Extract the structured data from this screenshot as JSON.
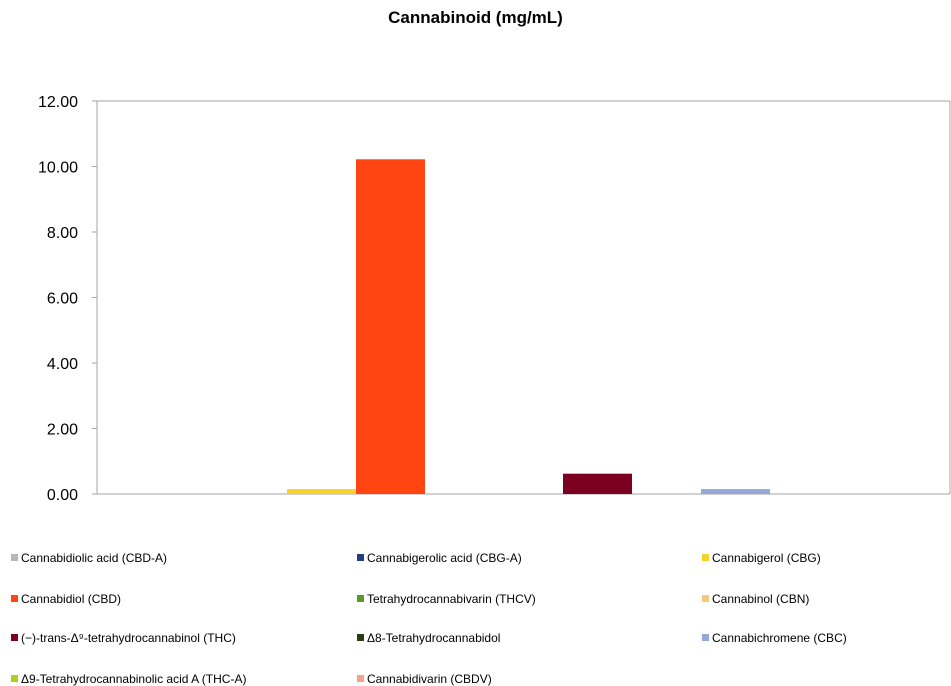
{
  "chart_data": {
    "type": "bar",
    "title": "Cannabinoid (mg/mL)",
    "xlabel": "",
    "ylabel": "",
    "ylim": [
      0,
      12
    ],
    "y_ticks": [
      "0.00",
      "2.00",
      "4.00",
      "6.00",
      "8.00",
      "10.00",
      "12.00"
    ],
    "grid": false,
    "legend_position": "bottom",
    "series": [
      {
        "name": "Cannabidiolic acid (CBD-A)",
        "value": 0.0,
        "color": "#b7b7b7"
      },
      {
        "name": "Cannabigerolic acid (CBG-A)",
        "value": 0.0,
        "color": "#1f3f7f"
      },
      {
        "name": "Cannabigerol (CBG)",
        "value": 0.15,
        "color": "#f7d22a"
      },
      {
        "name": "Cannabidiol (CBD)",
        "value": 10.22,
        "color": "#ff4512"
      },
      {
        "name": "Tetrahydrocannabivarin (THCV)",
        "value": 0.0,
        "color": "#5a9a2a"
      },
      {
        "name": "Cannabinol (CBN)",
        "value": 0.0,
        "color": "#f7c97a"
      },
      {
        "name": "(−)-trans-Δ⁹-tetrahydrocannabinol (THC)",
        "value": 0.62,
        "color": "#7c0022"
      },
      {
        "name": "Δ8-Tetrahydrocannabidol",
        "value": 0.0,
        "color": "#2d3a14"
      },
      {
        "name": "Cannabichromene (CBC)",
        "value": 0.15,
        "color": "#95a8d8"
      },
      {
        "name": "Δ9-Tetrahydrocannabinolic acid A (THC-A)",
        "value": 0.0,
        "color": "#b4cc1a"
      },
      {
        "name": "Cannabidivarin (CBDV)",
        "value": 0.0,
        "color": "#f3a48a"
      }
    ]
  }
}
